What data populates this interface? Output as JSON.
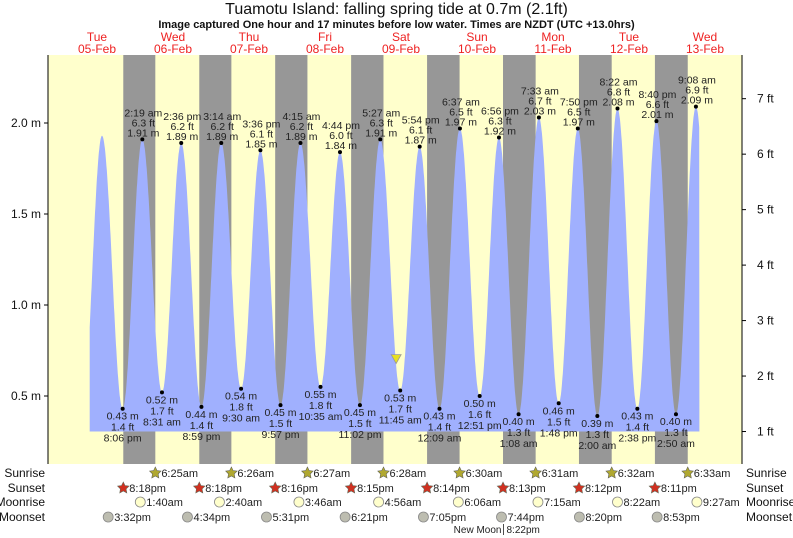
{
  "title": "Tuamotu Island: falling  spring tide at 0.7m (2.1ft)",
  "subtitle": "Image captured One hour and 17 minutes before low water. Times are NZDT (UTC +13.0hrs)",
  "colors": {
    "day": "#ffffcc",
    "night": "#979797",
    "water": "#a0b0fe",
    "day_label": "#ee2222",
    "sunrise_star": "#b0a830",
    "sunset_star": "#d03020",
    "moonrise": "#ffffcc",
    "moonset": "#bdbdb0",
    "current_marker": "#e8e020"
  },
  "chart_data": {
    "type": "area",
    "title": "Tuamotu Island: falling  spring tide at 0.7m (2.1ft)",
    "left_axis": {
      "unit": "m",
      "ticks": [
        "0.5 m",
        "1.0 m",
        "1.5 m",
        "2.0 m"
      ],
      "tick_values": [
        0.5,
        1.0,
        1.5,
        2.0
      ]
    },
    "right_axis": {
      "unit": "ft",
      "ticks": [
        "1 ft",
        "2 ft",
        "3 ft",
        "4 ft",
        "5 ft",
        "6 ft",
        "7 ft"
      ],
      "tick_values": [
        1,
        2,
        3,
        4,
        5,
        6,
        7
      ]
    },
    "days": [
      {
        "weekday": "Tue",
        "date": "05-Feb"
      },
      {
        "weekday": "Wed",
        "date": "06-Feb"
      },
      {
        "weekday": "Thu",
        "date": "07-Feb"
      },
      {
        "weekday": "Fri",
        "date": "08-Feb"
      },
      {
        "weekday": "Sat",
        "date": "09-Feb"
      },
      {
        "weekday": "Sun",
        "date": "10-Feb"
      },
      {
        "weekday": "Mon",
        "date": "11-Feb"
      },
      {
        "weekday": "Tue",
        "date": "12-Feb"
      },
      {
        "weekday": "Wed",
        "date": "13-Feb"
      }
    ],
    "unlabeled_high": {
      "date": "05-Feb",
      "time": "1:35 pm",
      "m": 1.93
    },
    "tides": [
      {
        "type": "low",
        "date": "05-Feb",
        "time": "8:06 pm",
        "m": "0.43 m",
        "ft": "1.4 ft"
      },
      {
        "type": "high",
        "date": "06-Feb",
        "time": "2:19 am",
        "m": "1.91 m",
        "ft": "6.3 ft"
      },
      {
        "type": "low",
        "date": "06-Feb",
        "time": "8:31 am",
        "m": "0.52 m",
        "ft": "1.7 ft"
      },
      {
        "type": "high",
        "date": "06-Feb",
        "time": "2:36 pm",
        "m": "1.89 m",
        "ft": "6.2 ft"
      },
      {
        "type": "low",
        "date": "06-Feb",
        "time": "8:59 pm",
        "m": "0.44 m",
        "ft": "1.4 ft"
      },
      {
        "type": "high",
        "date": "07-Feb",
        "time": "3:14 am",
        "m": "1.89 m",
        "ft": "6.2 ft"
      },
      {
        "type": "low",
        "date": "07-Feb",
        "time": "9:30 am",
        "m": "0.54 m",
        "ft": "1.8 ft"
      },
      {
        "type": "high",
        "date": "07-Feb",
        "time": "3:36 pm",
        "m": "1.85 m",
        "ft": "6.1 ft"
      },
      {
        "type": "low",
        "date": "07-Feb",
        "time": "9:57 pm",
        "m": "0.45 m",
        "ft": "1.5 ft"
      },
      {
        "type": "high",
        "date": "08-Feb",
        "time": "4:15 am",
        "m": "1.89 m",
        "ft": "6.2 ft"
      },
      {
        "type": "low",
        "date": "08-Feb",
        "time": "10:35 am",
        "m": "0.55 m",
        "ft": "1.8 ft"
      },
      {
        "type": "high",
        "date": "08-Feb",
        "time": "4:44 pm",
        "m": "1.84 m",
        "ft": "6.0 ft"
      },
      {
        "type": "low",
        "date": "08-Feb",
        "time": "11:02 pm",
        "m": "0.45 m",
        "ft": "1.5 ft"
      },
      {
        "type": "high",
        "date": "09-Feb",
        "time": "5:27 am",
        "m": "1.91 m",
        "ft": "6.3 ft"
      },
      {
        "type": "low",
        "date": "09-Feb",
        "time": "11:45 am",
        "m": "0.53 m",
        "ft": "1.7 ft"
      },
      {
        "type": "high",
        "date": "09-Feb",
        "time": "5:54 pm",
        "m": "1.87 m",
        "ft": "6.1 ft"
      },
      {
        "type": "low",
        "date": "10-Feb",
        "time": "12:09 am",
        "m": "0.43 m",
        "ft": "1.4 ft"
      },
      {
        "type": "high",
        "date": "10-Feb",
        "time": "6:37 am",
        "m": "1.97 m",
        "ft": "6.5 ft"
      },
      {
        "type": "low",
        "date": "10-Feb",
        "time": "12:51 pm",
        "m": "0.50 m",
        "ft": "1.6 ft"
      },
      {
        "type": "high",
        "date": "10-Feb",
        "time": "6:56 pm",
        "m": "1.92 m",
        "ft": "6.3 ft"
      },
      {
        "type": "low",
        "date": "11-Feb",
        "time": "1:08 am",
        "m": "0.40 m",
        "ft": "1.3 ft"
      },
      {
        "type": "high",
        "date": "11-Feb",
        "time": "7:33 am",
        "m": "2.03 m",
        "ft": "6.7 ft"
      },
      {
        "type": "low",
        "date": "11-Feb",
        "time": "1:48 pm",
        "m": "0.46 m",
        "ft": "1.5 ft"
      },
      {
        "type": "high",
        "date": "11-Feb",
        "time": "7:50 pm",
        "m": "1.97 m",
        "ft": "6.5 ft"
      },
      {
        "type": "low",
        "date": "12-Feb",
        "time": "2:00 am",
        "m": "0.39 m",
        "ft": "1.3 ft"
      },
      {
        "type": "high",
        "date": "12-Feb",
        "time": "8:22 am",
        "m": "2.08 m",
        "ft": "6.8 ft"
      },
      {
        "type": "low",
        "date": "12-Feb",
        "time": "2:38 pm",
        "m": "0.43 m",
        "ft": "1.4 ft"
      },
      {
        "type": "high",
        "date": "12-Feb",
        "time": "8:40 pm",
        "m": "2.01 m",
        "ft": "6.6 ft"
      },
      {
        "type": "low",
        "date": "13-Feb",
        "time": "2:50 am",
        "m": "0.40 m",
        "ft": "1.3 ft"
      },
      {
        "type": "high",
        "date": "13-Feb",
        "time": "9:08 am",
        "m": "2.09 m",
        "ft": "6.9 ft"
      }
    ],
    "current": {
      "date": "09-Feb",
      "time": "10:28 am",
      "m": 0.7,
      "ft": 2.1,
      "state": "falling"
    }
  },
  "almanac": {
    "labels": {
      "sunrise": "Sunrise",
      "sunset": "Sunset",
      "moonrise": "Moonrise",
      "moonset": "Moonset"
    },
    "sunrise": [
      {
        "date": "06-Feb",
        "time": "6:25am"
      },
      {
        "date": "07-Feb",
        "time": "6:26am"
      },
      {
        "date": "08-Feb",
        "time": "6:27am"
      },
      {
        "date": "09-Feb",
        "time": "6:28am"
      },
      {
        "date": "10-Feb",
        "time": "6:30am"
      },
      {
        "date": "11-Feb",
        "time": "6:31am"
      },
      {
        "date": "12-Feb",
        "time": "6:32am"
      },
      {
        "date": "13-Feb",
        "time": "6:33am"
      }
    ],
    "sunset": [
      {
        "date": "05-Feb",
        "time": "8:18pm"
      },
      {
        "date": "06-Feb",
        "time": "8:18pm"
      },
      {
        "date": "07-Feb",
        "time": "8:16pm"
      },
      {
        "date": "08-Feb",
        "time": "8:15pm"
      },
      {
        "date": "09-Feb",
        "time": "8:14pm"
      },
      {
        "date": "10-Feb",
        "time": "8:13pm"
      },
      {
        "date": "11-Feb",
        "time": "8:12pm"
      },
      {
        "date": "12-Feb",
        "time": "8:11pm"
      }
    ],
    "moonrise": [
      {
        "date": "06-Feb",
        "time": "1:40am"
      },
      {
        "date": "07-Feb",
        "time": "2:40am"
      },
      {
        "date": "08-Feb",
        "time": "3:46am"
      },
      {
        "date": "09-Feb",
        "time": "4:56am"
      },
      {
        "date": "10-Feb",
        "time": "6:06am"
      },
      {
        "date": "11-Feb",
        "time": "7:15am"
      },
      {
        "date": "12-Feb",
        "time": "8:22am"
      },
      {
        "date": "13-Feb",
        "time": "9:27am"
      }
    ],
    "moonset": [
      {
        "date": "05-Feb",
        "time": "3:32pm"
      },
      {
        "date": "06-Feb",
        "time": "4:34pm"
      },
      {
        "date": "07-Feb",
        "time": "5:31pm"
      },
      {
        "date": "08-Feb",
        "time": "6:21pm"
      },
      {
        "date": "09-Feb",
        "time": "7:05pm"
      },
      {
        "date": "10-Feb",
        "time": "7:44pm"
      },
      {
        "date": "11-Feb",
        "time": "8:20pm"
      },
      {
        "date": "12-Feb",
        "time": "8:53pm"
      }
    ],
    "moon_phase": {
      "label": "New Moon",
      "date": "10-Feb",
      "time": "8:22pm"
    }
  }
}
